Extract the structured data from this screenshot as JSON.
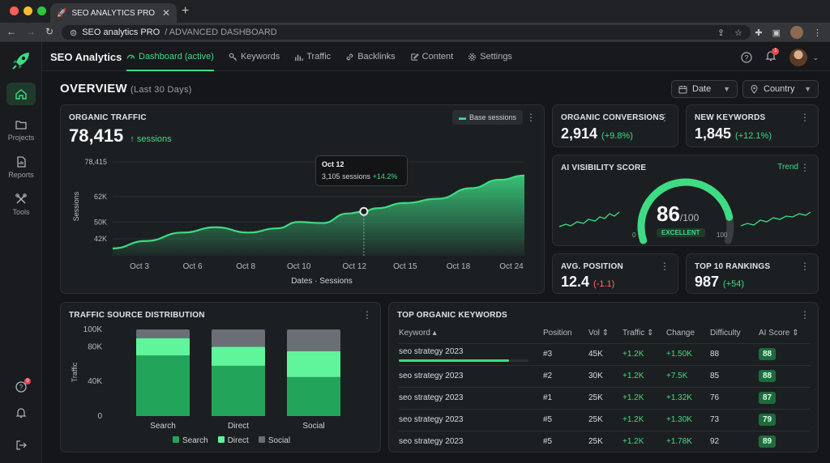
{
  "browser": {
    "tab_title": "SEO ANALYTICS PRO",
    "address_host": "SEO analytics PRO",
    "address_path": "/ ADVANCED DASHBOARD"
  },
  "sidebar": {
    "items": [
      {
        "label": "",
        "icon": "home-icon"
      },
      {
        "label": "Projects",
        "icon": "folder-icon"
      },
      {
        "label": "Reports",
        "icon": "report-icon"
      },
      {
        "label": "Tools",
        "icon": "tools-icon"
      }
    ],
    "help_badge": "0"
  },
  "topnav": {
    "brand": "SEO Analytics",
    "links": [
      "Dashboard (active)",
      "Keywords",
      "Traffic",
      "Backlinks",
      "Content",
      "Settings"
    ],
    "notif_badge": "1"
  },
  "overview": {
    "title": "OVERVIEW",
    "range": "(Last 30 Days)",
    "filter_date": "Date",
    "filter_country": "Country"
  },
  "organic_traffic": {
    "title": "ORGANIC TRAFFIC",
    "value": "78,415",
    "unit": "↑ sessions",
    "base_button": "Base sessions",
    "tooltip_date": "Oct 12",
    "tooltip_value": "3,105 sessions",
    "tooltip_delta": "+14.2%"
  },
  "conversions": {
    "title": "ORGANIC CONVERSIONS",
    "value": "2,914",
    "delta": "(+9.8%)"
  },
  "new_keywords": {
    "title": "NEW KEYWORDS",
    "value": "1,845",
    "delta": "(+12.1%)"
  },
  "ai_visibility": {
    "title": "AI VISIBILITY SCORE",
    "trend": "Trend",
    "score": "86",
    "max": "/100",
    "badge": "EXCELLENT",
    "min_label": "0",
    "max_label": "100",
    "score_fraction": 0.86
  },
  "avg_position": {
    "title": "AVG. POSITION",
    "value": "12.4",
    "delta": "(-1.1)"
  },
  "top10": {
    "title": "TOP 10 RANKINGS",
    "value": "987",
    "delta": "(+54)"
  },
  "traffic_source": {
    "title": "TRAFFIC SOURCE DISTRIBUTION"
  },
  "keywords_table": {
    "title": "TOP ORGANIC KEYWORDS",
    "headers": [
      "Keyword ▴",
      "Position",
      "Vol ⇕",
      "Traffic ⇕",
      "Change",
      "Difficulty",
      "AI Score ⇕"
    ],
    "rows": [
      {
        "keyword": "seo strategy 2023",
        "position": "#3",
        "vol": "45K",
        "traffic": "+1.2K",
        "change": "+1.50K",
        "difficulty": "88",
        "ai": "88",
        "progress": 0.85
      },
      {
        "keyword": "seo strategy 2023",
        "position": "#2",
        "vol": "30K",
        "traffic": "+1.2K",
        "change": "+7.5K",
        "difficulty": "85",
        "ai": "88"
      },
      {
        "keyword": "seo strategy 2023",
        "position": "#1",
        "vol": "25K",
        "traffic": "+1.2K",
        "change": "+1.32K",
        "difficulty": "76",
        "ai": "87"
      },
      {
        "keyword": "seo strategy 2023",
        "position": "#5",
        "vol": "25K",
        "traffic": "+1.2K",
        "change": "+1.30K",
        "difficulty": "73",
        "ai": "79"
      },
      {
        "keyword": "seo strategy 2023",
        "position": "#5",
        "vol": "25K",
        "traffic": "+1.2K",
        "change": "+1.78K",
        "difficulty": "92",
        "ai": "89"
      }
    ]
  },
  "colors": {
    "accent": "#3ddc84",
    "accent_dark": "#22a55a",
    "gray": "#6b6f75"
  },
  "chart_data": [
    {
      "type": "area",
      "title": "ORGANIC TRAFFIC",
      "xlabel": "Dates · Sessions",
      "ylabel": "Sessions",
      "x_ticks": [
        "Oct 3",
        "Oct 6",
        "Oct 8",
        "Oct 10",
        "Oct 12",
        "Oct 15",
        "Oct 18",
        "Oct 24"
      ],
      "y_ticks": [
        "42K",
        "50K",
        "62K",
        "78,415"
      ],
      "y_tick_values": [
        42000,
        50000,
        62000,
        78415
      ],
      "ylim": [
        34000,
        80000
      ],
      "x": [
        0,
        0.08,
        0.17,
        0.25,
        0.33,
        0.4,
        0.45,
        0.51,
        0.57,
        0.61,
        0.64,
        0.71,
        0.79,
        0.87,
        0.94,
        1.0
      ],
      "y": [
        37500,
        41000,
        45000,
        47500,
        45000,
        47000,
        50000,
        49500,
        54000,
        55000,
        56500,
        59000,
        61000,
        66000,
        70000,
        72000
      ],
      "highlight_index": 9,
      "grid": true
    },
    {
      "type": "bar",
      "title": "TRAFFIC SOURCE DISTRIBUTION",
      "ylabel": "Traffic",
      "categories": [
        "Search",
        "Direct",
        "Social"
      ],
      "y_ticks": [
        "0",
        "40K",
        "80K",
        "100K"
      ],
      "y_tick_values": [
        0,
        40000,
        80000,
        100000
      ],
      "ylim": [
        0,
        100000
      ],
      "stacked": true,
      "legend": "bottom",
      "series": [
        {
          "name": "Search",
          "values": [
            70000,
            58000,
            45000
          ]
        },
        {
          "name": "Direct",
          "values": [
            20000,
            22000,
            30000
          ]
        },
        {
          "name": "Social",
          "values": [
            10000,
            20000,
            25000
          ]
        }
      ]
    }
  ]
}
